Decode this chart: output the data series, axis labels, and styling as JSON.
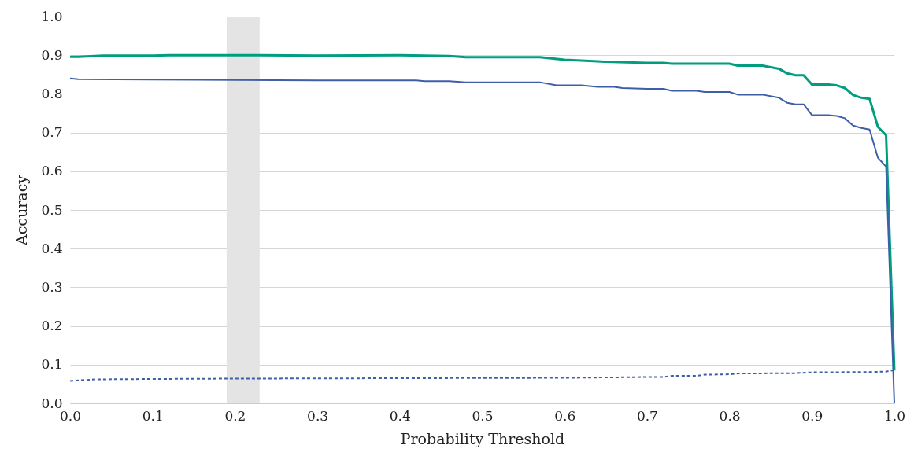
{
  "chart_data": {
    "type": "line",
    "xlabel": "Probability Threshold",
    "ylabel": "Accuracy",
    "xlim": [
      0,
      1
    ],
    "ylim": [
      0,
      1
    ],
    "xticks": [
      {
        "value": 0,
        "label": "0.0"
      },
      0.1,
      0.2,
      0.3,
      0.4,
      0.5,
      0.6,
      0.7,
      0.8,
      0.9,
      {
        "value": 1,
        "label": "1.0"
      }
    ],
    "yticks": [
      {
        "value": 0,
        "label": "0.0"
      },
      0.1,
      0.2,
      0.3,
      0.4,
      0.5,
      0.6,
      0.7,
      0.8,
      0.9,
      {
        "value": 1,
        "label": "1.0"
      }
    ],
    "grid": "y",
    "bands": [
      {
        "axis": "x",
        "from": 0.19,
        "to": 0.23,
        "color": "#e4e4e4"
      }
    ],
    "series": [
      {
        "color": "#009e7f",
        "line_style": "solid",
        "x": [
          0,
          0.01,
          0.04,
          0.1,
          0.12,
          0.2,
          0.23,
          0.3,
          0.4,
          0.46,
          0.48,
          0.57,
          0.6,
          0.63,
          0.65,
          0.7,
          0.72,
          0.73,
          0.8,
          0.81,
          0.84,
          0.86,
          0.87,
          0.88,
          0.89,
          0.9,
          0.92,
          0.93,
          0.94,
          0.95,
          0.96,
          0.97,
          0.98,
          0.99,
          1.0
        ],
        "values": [
          0.896,
          0.896,
          0.899,
          0.899,
          0.9,
          0.9,
          0.9,
          0.899,
          0.9,
          0.898,
          0.895,
          0.895,
          0.888,
          0.885,
          0.883,
          0.88,
          0.88,
          0.878,
          0.878,
          0.873,
          0.873,
          0.865,
          0.853,
          0.848,
          0.848,
          0.824,
          0.824,
          0.822,
          0.815,
          0.797,
          0.79,
          0.787,
          0.715,
          0.693,
          0.085
        ]
      },
      {
        "color": "#3f5ea8",
        "line_style": "solid",
        "x": [
          0,
          0.01,
          0.1,
          0.2,
          0.3,
          0.42,
          0.43,
          0.46,
          0.48,
          0.57,
          0.59,
          0.62,
          0.64,
          0.66,
          0.67,
          0.7,
          0.72,
          0.73,
          0.76,
          0.77,
          0.8,
          0.81,
          0.84,
          0.86,
          0.87,
          0.88,
          0.89,
          0.9,
          0.92,
          0.93,
          0.94,
          0.95,
          0.96,
          0.97,
          0.98,
          0.99,
          1.0
        ],
        "values": [
          0.84,
          0.838,
          0.837,
          0.836,
          0.835,
          0.835,
          0.833,
          0.833,
          0.83,
          0.83,
          0.822,
          0.822,
          0.818,
          0.818,
          0.815,
          0.813,
          0.813,
          0.808,
          0.808,
          0.805,
          0.805,
          0.798,
          0.798,
          0.79,
          0.777,
          0.773,
          0.773,
          0.745,
          0.745,
          0.743,
          0.737,
          0.718,
          0.712,
          0.708,
          0.635,
          0.612,
          0.0
        ]
      },
      {
        "color": "#3f5ea8",
        "line_style": "dashed",
        "x": [
          0,
          0.03,
          0.1,
          0.2,
          0.4,
          0.6,
          0.7,
          0.72,
          0.73,
          0.76,
          0.77,
          0.8,
          0.81,
          0.88,
          0.9,
          0.97,
          0.99,
          1.0
        ],
        "values": [
          0.058,
          0.062,
          0.063,
          0.064,
          0.065,
          0.066,
          0.068,
          0.068,
          0.071,
          0.071,
          0.074,
          0.075,
          0.077,
          0.078,
          0.08,
          0.081,
          0.082,
          0.086
        ]
      }
    ]
  }
}
